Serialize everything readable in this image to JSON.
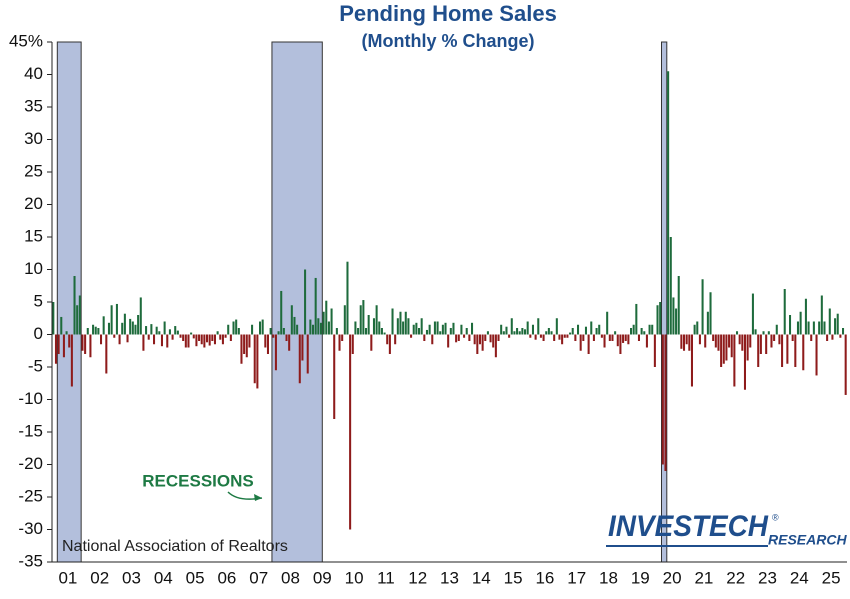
{
  "chart_data": {
    "type": "bar",
    "title": "Pending Home Sales",
    "subtitle": "(Monthly % Change)",
    "annotation": "RECESSIONS",
    "source": "National Association of Realtors",
    "logo": {
      "name": "INVESTECH",
      "mark": "®",
      "sub": "RESEARCH"
    },
    "positive_color": "#1e6b3c",
    "negative_color": "#8e1b1b",
    "recession_color": "#b3bfdc",
    "recessions": [
      [
        2,
        10
      ],
      [
        83,
        101
      ],
      [
        230,
        231
      ]
    ],
    "ylim": [
      -35,
      45
    ],
    "yticks": [
      -35,
      -30,
      -25,
      -20,
      -15,
      -10,
      -5,
      0,
      5,
      10,
      15,
      20,
      25,
      30,
      35,
      40,
      {
        "value": 45,
        "label": "45%"
      }
    ],
    "categories": [
      null,
      null,
      null,
      null,
      null,
      null,
      "01",
      null,
      null,
      null,
      null,
      null,
      null,
      null,
      null,
      null,
      null,
      null,
      "02",
      null,
      null,
      null,
      null,
      null,
      null,
      null,
      null,
      null,
      null,
      null,
      "03",
      null,
      null,
      null,
      null,
      null,
      null,
      null,
      null,
      null,
      null,
      null,
      "04",
      null,
      null,
      null,
      null,
      null,
      null,
      null,
      null,
      null,
      null,
      null,
      "05",
      null,
      null,
      null,
      null,
      null,
      null,
      null,
      null,
      null,
      null,
      null,
      "06",
      null,
      null,
      null,
      null,
      null,
      null,
      null,
      null,
      null,
      null,
      null,
      "07",
      null,
      null,
      null,
      null,
      null,
      null,
      null,
      null,
      null,
      null,
      null,
      "08",
      null,
      null,
      null,
      null,
      null,
      null,
      null,
      null,
      null,
      null,
      null,
      "09",
      null,
      null,
      null,
      null,
      null,
      null,
      null,
      null,
      null,
      null,
      null,
      "10",
      null,
      null,
      null,
      null,
      null,
      null,
      null,
      null,
      null,
      null,
      null,
      "11",
      null,
      null,
      null,
      null,
      null,
      null,
      null,
      null,
      null,
      null,
      null,
      "12",
      null,
      null,
      null,
      null,
      null,
      null,
      null,
      null,
      null,
      null,
      null,
      "13",
      null,
      null,
      null,
      null,
      null,
      null,
      null,
      null,
      null,
      null,
      null,
      "14",
      null,
      null,
      null,
      null,
      null,
      null,
      null,
      null,
      null,
      null,
      null,
      "15",
      null,
      null,
      null,
      null,
      null,
      null,
      null,
      null,
      null,
      null,
      null,
      "16",
      null,
      null,
      null,
      null,
      null,
      null,
      null,
      null,
      null,
      null,
      null,
      "17",
      null,
      null,
      null,
      null,
      null,
      null,
      null,
      null,
      null,
      null,
      null,
      "18",
      null,
      null,
      null,
      null,
      null,
      null,
      null,
      null,
      null,
      null,
      null,
      "19",
      null,
      null,
      null,
      null,
      null,
      null,
      null,
      null,
      null,
      null,
      null,
      "20",
      null,
      null,
      null,
      null,
      null,
      null,
      null,
      null,
      null,
      null,
      null,
      "21",
      null,
      null,
      null,
      null,
      null,
      null,
      null,
      null,
      null,
      null,
      null,
      "22",
      null,
      null,
      null,
      null,
      null,
      null,
      null,
      null,
      null,
      null,
      null,
      "23",
      null,
      null,
      null,
      null,
      null,
      null,
      null,
      null,
      null,
      null,
      null,
      "24",
      null,
      null,
      null,
      null,
      null,
      null,
      null,
      null,
      null,
      null,
      null,
      "25",
      null,
      null,
      null,
      null,
      null
    ],
    "values": [
      5,
      -4.5,
      -3,
      2.7,
      -3.5,
      0.5,
      -2,
      -8,
      9,
      4.5,
      6,
      -2.5,
      -3,
      1,
      -3.5,
      1.5,
      1.2,
      1,
      -1.5,
      2.8,
      -6,
      1.8,
      4.5,
      -0.5,
      4.7,
      -1.5,
      1.8,
      3.2,
      -1.2,
      2.4,
      2,
      1.5,
      3,
      5.7,
      -2.5,
      1.3,
      -0.8,
      1.6,
      -1.5,
      1.2,
      0.5,
      -1.8,
      2,
      -2,
      0.8,
      -0.8,
      1.3,
      0.6,
      -0.5,
      -1,
      -2,
      -2,
      0.3,
      -0.6,
      -1.8,
      -1,
      -1.5,
      -2,
      -1.2,
      -1.7,
      -1,
      -1.5,
      0.5,
      -0.8,
      -1.5,
      -0.5,
      1.5,
      -1,
      2,
      2.3,
      1,
      -4.5,
      -3,
      -3.5,
      -2,
      1.5,
      -7.5,
      -8.3,
      2,
      2.3,
      -2,
      -3,
      1,
      -0.5,
      -5.5,
      0.5,
      6.7,
      1,
      -1,
      -2.5,
      4.5,
      2.7,
      1.5,
      -7.5,
      -4,
      10,
      -6,
      2.3,
      1.5,
      8.7,
      2.5,
      1.8,
      3.5,
      5.2,
      2,
      4,
      -13,
      1,
      -2.5,
      -1,
      4.5,
      11.2,
      -30,
      -3,
      2,
      1,
      4.5,
      5.3,
      1,
      3,
      -2.5,
      2.5,
      4.5,
      2,
      1,
      0.3,
      -1.5,
      -3,
      4,
      -1.5,
      2.5,
      3.5,
      2,
      3.5,
      2.5,
      -0.5,
      1.5,
      1.8,
      1,
      2.5,
      -1,
      0.7,
      1.5,
      -1.5,
      2,
      2,
      0.5,
      1.5,
      1.8,
      -2,
      1,
      1.8,
      -1.2,
      -1,
      1.5,
      -0.5,
      1,
      -1,
      1.8,
      -1.5,
      -3,
      -1.5,
      -2.5,
      -1,
      0.5,
      -1.2,
      -2,
      -3.5,
      -1,
      1.5,
      0.5,
      1.2,
      -0.5,
      2.5,
      0.5,
      1,
      0.5,
      1,
      0.8,
      2,
      -0.5,
      1.5,
      -0.8,
      2.5,
      -0.5,
      -1,
      0.5,
      1,
      0.5,
      -1,
      2.5,
      -0.8,
      -1.5,
      -0.5,
      -0.5,
      0.3,
      1,
      -1,
      1.5,
      -2.5,
      -1,
      1.2,
      -3,
      2,
      -1,
      1,
      1.5,
      -0.5,
      -2,
      3.5,
      -1,
      -1,
      0.5,
      -1.8,
      -3,
      -1.3,
      -1,
      -1.5,
      1,
      1.5,
      4.7,
      -1,
      1,
      0.5,
      -2,
      1.5,
      1.5,
      -5,
      4.5,
      5,
      -20,
      -21,
      40.5,
      15,
      5.7,
      4,
      9,
      -2.2,
      -2.5,
      -1.5,
      -2.5,
      -8,
      1.5,
      2,
      -1.5,
      8.5,
      -2,
      3.5,
      6.5,
      -1,
      -2,
      -2.5,
      -5,
      -4.5,
      -4,
      -2,
      -3.5,
      -8,
      0.5,
      -1.5,
      -2.5,
      -8.5,
      -4,
      -2,
      6.3,
      0.8,
      -5,
      -3,
      0.5,
      -3,
      0.5,
      -2,
      -1,
      1.5,
      -1.5,
      -5,
      7,
      -4.5,
      3,
      -1,
      -5,
      2,
      3.5,
      -5.5,
      5.5,
      2,
      -1,
      2,
      -6.3,
      2,
      6,
      2,
      -1,
      4,
      -0.8,
      2.5,
      3.2,
      -0.5,
      1,
      -9.3
    ]
  }
}
